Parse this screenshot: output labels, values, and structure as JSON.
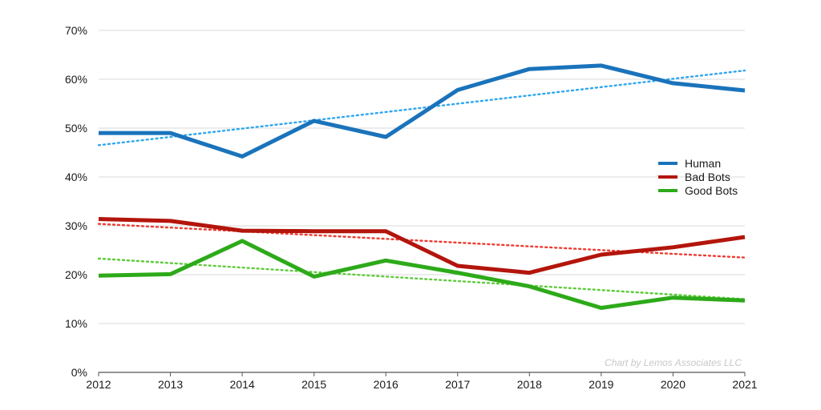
{
  "chart_data": {
    "type": "line",
    "x": [
      "2012",
      "2013",
      "2014",
      "2015",
      "2016",
      "2017",
      "2018",
      "2019",
      "2020",
      "2021"
    ],
    "ylim": [
      0,
      70
    ],
    "y_ticks": [
      "0%",
      "10%",
      "20%",
      "30%",
      "40%",
      "50%",
      "60%",
      "70%"
    ],
    "grid": "horizontal",
    "legend_position": "right",
    "series": [
      {
        "name": "Human",
        "color": "#1a73bb",
        "values": [
          49.0,
          49.0,
          44.2,
          51.5,
          48.2,
          57.8,
          62.1,
          62.8,
          59.2,
          57.7
        ],
        "trend": [
          46.5,
          61.8
        ]
      },
      {
        "name": "Bad Bots",
        "color": "#b3150c",
        "values": [
          31.4,
          31.0,
          29.0,
          28.9,
          28.9,
          21.8,
          20.4,
          24.1,
          25.6,
          27.7
        ],
        "trend": [
          30.4,
          23.5
        ]
      },
      {
        "name": "Good Bots",
        "color": "#2daa19",
        "values": [
          19.8,
          20.1,
          26.9,
          19.6,
          22.9,
          20.4,
          17.6,
          13.2,
          15.3,
          14.7
        ],
        "trend": [
          23.3,
          15.0
        ]
      }
    ],
    "trend_colors": [
      "#2ea6f0",
      "#ee3a30",
      "#5ccc3a"
    ],
    "credit": "Chart by Lemos Associates LLC"
  }
}
